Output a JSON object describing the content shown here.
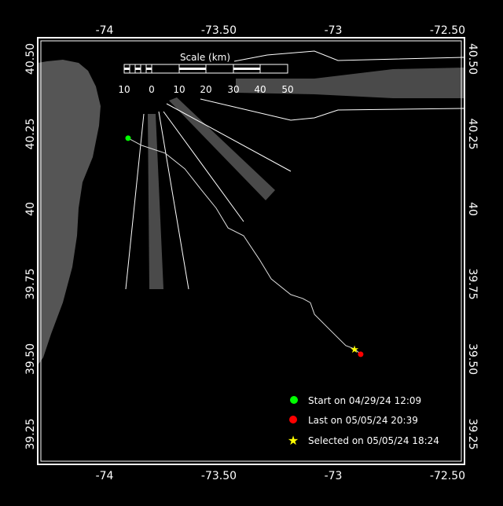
{
  "map": {
    "x_ticks": [
      "-74",
      "-73.50",
      "-73",
      "-72.50"
    ],
    "x_tick_values": [
      -74,
      -73.5,
      -73,
      -72.5
    ],
    "y_ticks": [
      "40.50",
      "40.25",
      "40",
      "39.75",
      "39.50",
      "39.25"
    ],
    "y_tick_values": [
      40.5,
      40.25,
      40,
      39.75,
      39.5,
      39.25
    ],
    "land_color": "#555555",
    "lane_color": "#4a4a4a",
    "track_color": "#ffffff"
  },
  "scale": {
    "title": "Scale (km)",
    "labels": [
      "10",
      "0",
      "10",
      "20",
      "30",
      "40",
      "50"
    ]
  },
  "track": {
    "points": [
      [
        -73.897,
        40.236
      ],
      [
        -73.838,
        40.212
      ],
      [
        -73.735,
        40.186
      ],
      [
        -73.649,
        40.134
      ],
      [
        -73.581,
        40.068
      ],
      [
        -73.512,
        40.003
      ],
      [
        -73.46,
        39.937
      ],
      [
        -73.392,
        39.911
      ],
      [
        -73.323,
        39.832
      ],
      [
        -73.271,
        39.767
      ],
      [
        -73.186,
        39.715
      ],
      [
        -73.134,
        39.702
      ],
      [
        -73.1,
        39.688
      ],
      [
        -73.082,
        39.649
      ],
      [
        -73.014,
        39.597
      ],
      [
        -72.945,
        39.545
      ],
      [
        -72.907,
        39.534
      ],
      [
        -72.88,
        39.516
      ]
    ],
    "start": {
      "lon": -73.897,
      "lat": 40.236,
      "color": "#00ff00"
    },
    "last": {
      "lon": -72.88,
      "lat": 39.516,
      "color": "#ff0000"
    },
    "selected": {
      "lon": -72.907,
      "lat": 39.534,
      "color": "#ffff00"
    }
  },
  "legend": {
    "start": "Start on 04/29/24 12:09",
    "last": "Last on 05/05/24 20:39",
    "selected": "Selected on 05/05/24 18:24"
  }
}
